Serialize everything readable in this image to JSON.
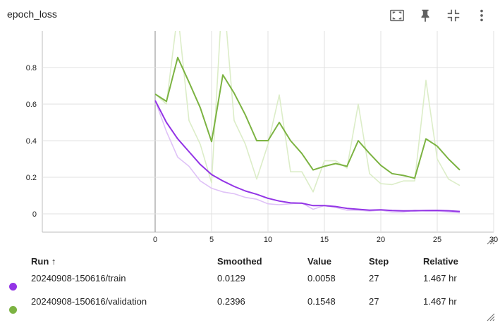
{
  "card": {
    "title": "epoch_loss"
  },
  "toolbar": {
    "icons": [
      "fit-domain-icon",
      "pin-icon",
      "collapse-icon",
      "more-vert-icon"
    ]
  },
  "colors": {
    "train": "#9334e6",
    "train_raw": "#dfc2f7",
    "validation": "#7cb342",
    "validation_raw": "#dcedc8",
    "grid": "#e0e0e0",
    "axis": "#bdbdbd"
  },
  "chart_data": {
    "type": "line",
    "xlabel": "",
    "ylabel": "",
    "xlim": [
      -10,
      30
    ],
    "ylim": [
      -0.1,
      1.0
    ],
    "x_ticks": [
      0,
      5,
      10,
      15,
      20,
      25,
      30
    ],
    "y_ticks": [
      0,
      0.2,
      0.4,
      0.6,
      0.8
    ],
    "x_tick_labels": [
      "0",
      "5",
      "10",
      "15",
      "20",
      "25",
      "30"
    ],
    "y_tick_labels": [
      "0",
      "0.2",
      "0.4",
      "0.6",
      "0.8"
    ],
    "grid": true,
    "series": [
      {
        "name": "20240908-150616/train",
        "kind": "smoothed",
        "color": "#9334e6",
        "x": [
          0,
          1,
          2,
          3,
          4,
          5,
          6,
          7,
          8,
          9,
          10,
          11,
          12,
          13,
          14,
          15,
          16,
          17,
          18,
          19,
          20,
          21,
          22,
          23,
          24,
          25,
          26,
          27
        ],
        "y": [
          0.62,
          0.5,
          0.41,
          0.34,
          0.27,
          0.215,
          0.18,
          0.15,
          0.125,
          0.107,
          0.085,
          0.07,
          0.06,
          0.058,
          0.045,
          0.045,
          0.04,
          0.03,
          0.025,
          0.02,
          0.022,
          0.018,
          0.016,
          0.017,
          0.018,
          0.019,
          0.017,
          0.013
        ]
      },
      {
        "name": "20240908-150616/train",
        "kind": "raw",
        "color": "#dfc2f7",
        "x": [
          0,
          1,
          2,
          3,
          4,
          5,
          6,
          7,
          8,
          9,
          10,
          11,
          12,
          13,
          14,
          15,
          16,
          17,
          18,
          19,
          20,
          21,
          22,
          23,
          24,
          25,
          26,
          27
        ],
        "y": [
          0.62,
          0.45,
          0.31,
          0.26,
          0.18,
          0.14,
          0.12,
          0.11,
          0.09,
          0.08,
          0.055,
          0.05,
          0.055,
          0.06,
          0.025,
          0.045,
          0.035,
          0.02,
          0.02,
          0.015,
          0.02,
          0.01,
          0.01,
          0.02,
          0.015,
          0.015,
          0.01,
          0.006
        ]
      },
      {
        "name": "20240908-150616/validation",
        "kind": "smoothed",
        "color": "#7cb342",
        "x": [
          0,
          1,
          2,
          3,
          4,
          5,
          6,
          7,
          8,
          9,
          10,
          11,
          12,
          13,
          14,
          15,
          16,
          17,
          18,
          19,
          20,
          21,
          22,
          23,
          24,
          25,
          26,
          27
        ],
        "y": [
          0.655,
          0.615,
          0.855,
          0.72,
          0.58,
          0.395,
          0.76,
          0.66,
          0.54,
          0.4,
          0.4,
          0.5,
          0.4,
          0.33,
          0.24,
          0.26,
          0.275,
          0.26,
          0.4,
          0.33,
          0.265,
          0.22,
          0.21,
          0.195,
          0.41,
          0.37,
          0.3,
          0.24
        ]
      },
      {
        "name": "20240908-150616/validation",
        "kind": "raw",
        "color": "#dcedc8",
        "x": [
          0,
          1,
          2,
          3,
          4,
          5,
          6,
          7,
          8,
          9,
          10,
          11,
          12,
          13,
          14,
          15,
          16,
          17,
          18,
          19,
          20,
          21,
          22,
          23,
          24,
          25,
          26,
          27
        ],
        "y": [
          0.655,
          0.6,
          1.1,
          0.51,
          0.38,
          0.17,
          1.25,
          0.51,
          0.38,
          0.19,
          0.38,
          0.65,
          0.23,
          0.23,
          0.12,
          0.29,
          0.29,
          0.25,
          0.6,
          0.22,
          0.165,
          0.16,
          0.18,
          0.18,
          0.73,
          0.3,
          0.19,
          0.155
        ]
      }
    ]
  },
  "table": {
    "headers": {
      "run": "Run ↑",
      "smoothed": "Smoothed",
      "value": "Value",
      "step": "Step",
      "relative": "Relative"
    },
    "rows": [
      {
        "run": "20240908-150616/train",
        "smoothed": "0.0129",
        "value": "0.0058",
        "step": "27",
        "relative": "1.467 hr",
        "color": "#9334e6"
      },
      {
        "run": "20240908-150616/validation",
        "smoothed": "0.2396",
        "value": "0.1548",
        "step": "27",
        "relative": "1.467 hr",
        "color": "#7cb342"
      }
    ]
  }
}
